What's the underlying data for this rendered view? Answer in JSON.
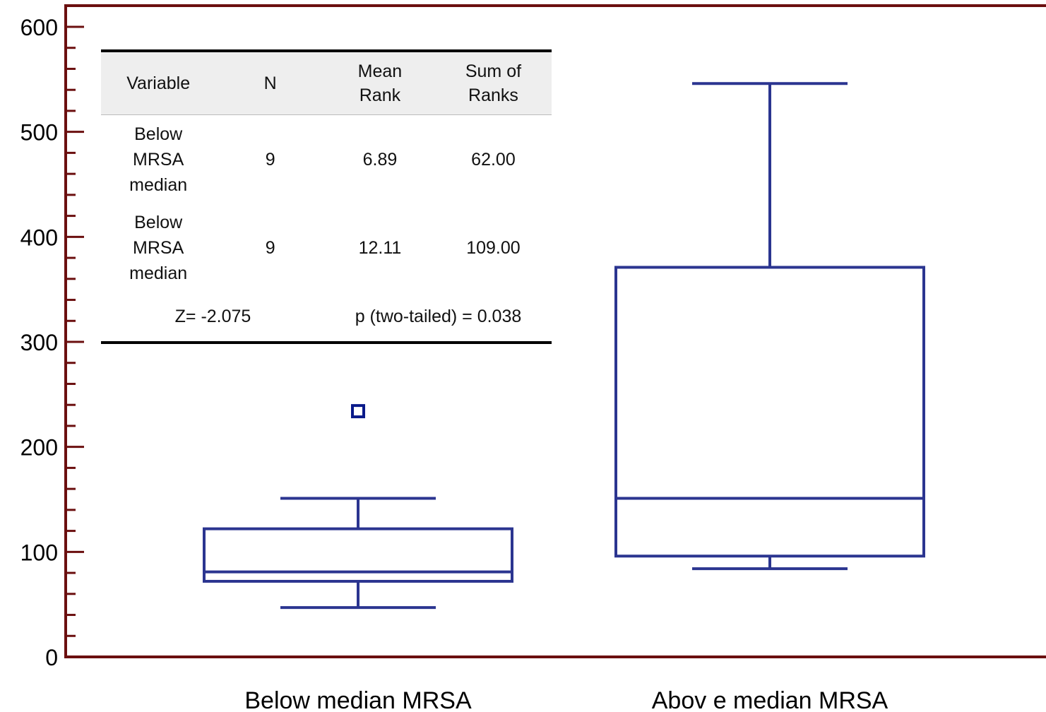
{
  "chart_data": {
    "type": "box",
    "categories": [
      "Below median MRSA",
      "Abov e median MRSA"
    ],
    "ylim": [
      0,
      600
    ],
    "yticks": [
      0,
      100,
      200,
      300,
      400,
      500,
      600
    ],
    "grid": false,
    "series": [
      {
        "category": "Below median MRSA",
        "whisker_low": 47,
        "q1": 72,
        "median": 81,
        "q3": 122,
        "whisker_high": 151,
        "outliers": [
          234
        ]
      },
      {
        "category": "Abov e median MRSA",
        "whisker_low": 84,
        "q1": 96,
        "median": 151,
        "q3": 371,
        "whisker_high": 546,
        "outliers": []
      }
    ],
    "colors": {
      "box": "#2b3590",
      "axis": "#6b0f0f",
      "outlier": "#0a1a8a"
    }
  },
  "stats_table": {
    "headers": [
      "Variable",
      "N",
      "Mean Rank",
      "Sum of Ranks"
    ],
    "rows": [
      {
        "variable": "Below MRSA median",
        "n": "9",
        "mean_rank": "6.89",
        "sum_ranks": "62.00"
      },
      {
        "variable": "Below MRSA median",
        "n": "9",
        "mean_rank": "12.11",
        "sum_ranks": "109.00"
      }
    ],
    "z": "Z= -2.075",
    "p": "p (two-tailed) = 0.038"
  }
}
